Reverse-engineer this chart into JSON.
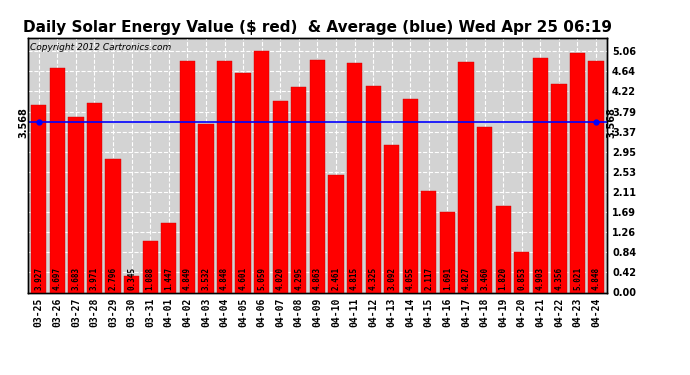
{
  "title": "Daily Solar Energy Value ($ red)  & Average (blue) Wed Apr 25 06:19",
  "copyright": "Copyright 2012 Cartronics.com",
  "categories": [
    "03-25",
    "03-26",
    "03-27",
    "03-28",
    "03-29",
    "03-30",
    "03-31",
    "04-01",
    "04-02",
    "04-03",
    "04-04",
    "04-05",
    "04-06",
    "04-07",
    "04-08",
    "04-09",
    "04-10",
    "04-11",
    "04-12",
    "04-13",
    "04-14",
    "04-15",
    "04-16",
    "04-17",
    "04-18",
    "04-19",
    "04-20",
    "04-21",
    "04-22",
    "04-23",
    "04-24"
  ],
  "values": [
    3.927,
    4.697,
    3.683,
    3.971,
    2.796,
    0.345,
    1.088,
    1.447,
    4.849,
    3.532,
    4.848,
    4.601,
    5.059,
    4.02,
    4.295,
    4.863,
    2.461,
    4.815,
    4.325,
    3.092,
    4.055,
    2.117,
    1.691,
    4.827,
    3.46,
    1.82,
    0.853,
    4.903,
    4.356,
    5.021,
    4.848
  ],
  "average": 3.568,
  "bar_color": "#ff0000",
  "avg_line_color": "#0000ff",
  "bg_color": "#ffffff",
  "plot_bg_color": "#d3d3d3",
  "grid_color": "#ffffff",
  "ylim": [
    0.0,
    5.34
  ],
  "yticks": [
    0.0,
    0.42,
    0.84,
    1.26,
    1.69,
    2.11,
    2.53,
    2.95,
    3.37,
    3.79,
    4.22,
    4.64,
    5.06
  ],
  "title_fontsize": 11,
  "copyright_fontsize": 6.5,
  "tick_fontsize": 7,
  "bar_label_fontsize": 5.5,
  "avg_label": "3.568"
}
